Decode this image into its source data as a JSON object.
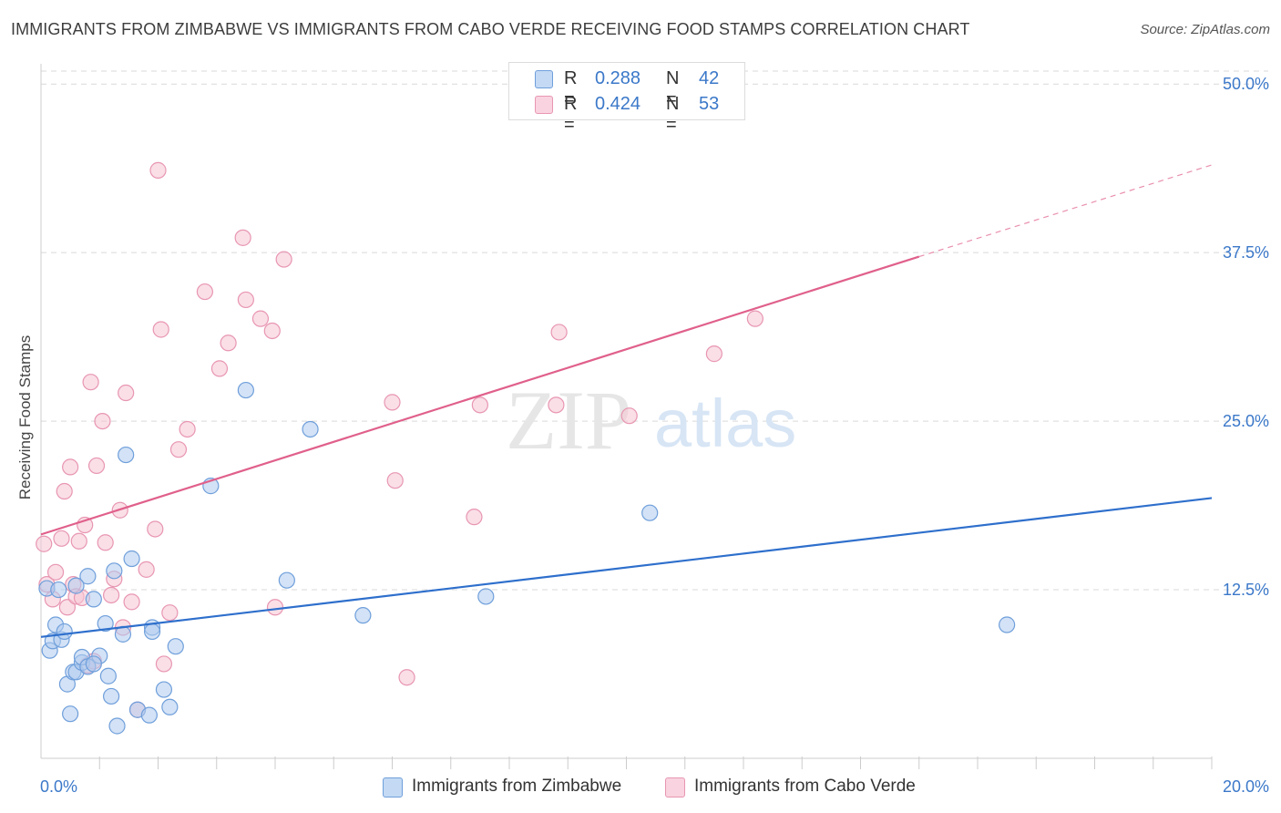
{
  "header": {
    "title": "IMMIGRANTS FROM ZIMBABWE VS IMMIGRANTS FROM CABO VERDE RECEIVING FOOD STAMPS CORRELATION CHART",
    "source": "Source: ZipAtlas.com"
  },
  "watermark": {
    "part1": "ZIP",
    "part2": "atlas"
  },
  "legend": {
    "r_label": "R =",
    "n_label": "N =",
    "series": [
      {
        "name": "Immigrants from Zimbabwe",
        "r": "0.288",
        "n": "42"
      },
      {
        "name": "Immigrants from Cabo Verde",
        "r": "0.424",
        "n": "53"
      }
    ]
  },
  "colors": {
    "zimbabwe_fill": "#aecbef",
    "zimbabwe_stroke": "#6f9fdb",
    "zimbabwe_line": "#2e6fcc",
    "caboverde_fill": "#f6c4d3",
    "caboverde_stroke": "#e896b1",
    "caboverde_line": "#e0608b",
    "tick_label": "#3b78c9",
    "grid": "#d9d9d9"
  },
  "chart_data": {
    "type": "scatter",
    "title": "IMMIGRANTS FROM ZIMBABWE VS IMMIGRANTS FROM CABO VERDE RECEIVING FOOD STAMPS CORRELATION CHART",
    "xlabel": "",
    "ylabel": "Receiving Food Stamps",
    "xlim": [
      0,
      20
    ],
    "ylim": [
      0,
      51.5
    ],
    "x_tick_labels": [
      "0.0%",
      "20.0%"
    ],
    "y_ticks": [
      12.5,
      25.0,
      37.5,
      50.0
    ],
    "y_tick_labels": [
      "12.5%",
      "25.0%",
      "37.5%",
      "50.0%"
    ],
    "grid": true,
    "legend_position": "top-center",
    "series": [
      {
        "name": "Immigrants from Zimbabwe",
        "points": [
          [
            0.1,
            12.6
          ],
          [
            0.15,
            8.0
          ],
          [
            0.2,
            8.7
          ],
          [
            0.25,
            9.9
          ],
          [
            0.3,
            12.5
          ],
          [
            0.35,
            8.8
          ],
          [
            0.4,
            9.4
          ],
          [
            0.45,
            5.5
          ],
          [
            0.5,
            3.3
          ],
          [
            0.55,
            6.4
          ],
          [
            0.6,
            6.4
          ],
          [
            0.7,
            7.1
          ],
          [
            0.7,
            7.5
          ],
          [
            0.8,
            6.8
          ],
          [
            0.8,
            13.5
          ],
          [
            0.9,
            11.8
          ],
          [
            1.0,
            7.6
          ],
          [
            1.1,
            10.0
          ],
          [
            1.15,
            6.1
          ],
          [
            1.2,
            4.6
          ],
          [
            1.25,
            13.9
          ],
          [
            1.3,
            2.4
          ],
          [
            1.4,
            9.2
          ],
          [
            1.45,
            22.5
          ],
          [
            1.55,
            14.8
          ],
          [
            1.65,
            3.6
          ],
          [
            1.9,
            9.7
          ],
          [
            1.9,
            9.4
          ],
          [
            2.1,
            5.1
          ],
          [
            2.2,
            3.8
          ],
          [
            2.3,
            8.3
          ],
          [
            2.9,
            20.2
          ],
          [
            3.5,
            27.3
          ],
          [
            4.2,
            13.2
          ],
          [
            4.6,
            24.4
          ],
          [
            5.5,
            10.6
          ],
          [
            7.6,
            12.0
          ],
          [
            10.4,
            18.2
          ],
          [
            16.5,
            9.9
          ],
          [
            0.6,
            12.8
          ],
          [
            0.9,
            7.0
          ],
          [
            1.85,
            3.2
          ]
        ],
        "trend": {
          "x": [
            0,
            20
          ],
          "y": [
            9.0,
            19.3
          ]
        }
      },
      {
        "name": "Immigrants from Cabo Verde",
        "points": [
          [
            0.05,
            15.9
          ],
          [
            0.1,
            12.9
          ],
          [
            0.2,
            11.8
          ],
          [
            0.25,
            13.8
          ],
          [
            0.35,
            16.3
          ],
          [
            0.4,
            19.8
          ],
          [
            0.45,
            11.2
          ],
          [
            0.5,
            21.6
          ],
          [
            0.55,
            12.9
          ],
          [
            0.6,
            12.0
          ],
          [
            0.65,
            16.1
          ],
          [
            0.7,
            11.9
          ],
          [
            0.75,
            17.3
          ],
          [
            0.8,
            6.9
          ],
          [
            0.85,
            27.9
          ],
          [
            0.9,
            7.2
          ],
          [
            0.95,
            21.7
          ],
          [
            1.05,
            25.0
          ],
          [
            1.1,
            16.0
          ],
          [
            1.2,
            12.1
          ],
          [
            1.25,
            13.3
          ],
          [
            1.35,
            18.4
          ],
          [
            1.4,
            9.7
          ],
          [
            1.45,
            27.1
          ],
          [
            1.55,
            11.6
          ],
          [
            1.65,
            3.6
          ],
          [
            1.8,
            14.0
          ],
          [
            1.95,
            17.0
          ],
          [
            2.0,
            43.6
          ],
          [
            2.05,
            31.8
          ],
          [
            2.1,
            7.0
          ],
          [
            2.2,
            10.8
          ],
          [
            2.35,
            22.9
          ],
          [
            2.5,
            24.4
          ],
          [
            2.8,
            34.6
          ],
          [
            3.05,
            28.9
          ],
          [
            3.2,
            30.8
          ],
          [
            3.45,
            38.6
          ],
          [
            3.5,
            34.0
          ],
          [
            3.75,
            32.6
          ],
          [
            3.95,
            31.7
          ],
          [
            4.0,
            11.2
          ],
          [
            4.15,
            37.0
          ],
          [
            6.0,
            26.4
          ],
          [
            6.05,
            20.6
          ],
          [
            6.25,
            6.0
          ],
          [
            7.4,
            17.9
          ],
          [
            7.5,
            26.2
          ],
          [
            8.8,
            26.2
          ],
          [
            8.85,
            31.6
          ],
          [
            10.05,
            25.4
          ],
          [
            11.5,
            30.0
          ],
          [
            12.2,
            32.6
          ]
        ],
        "trend": {
          "x": [
            0,
            15
          ],
          "y": [
            16.6,
            37.2
          ]
        },
        "trend_dashed": {
          "x": [
            15,
            20
          ],
          "y": [
            37.2,
            44.0
          ]
        }
      }
    ]
  }
}
